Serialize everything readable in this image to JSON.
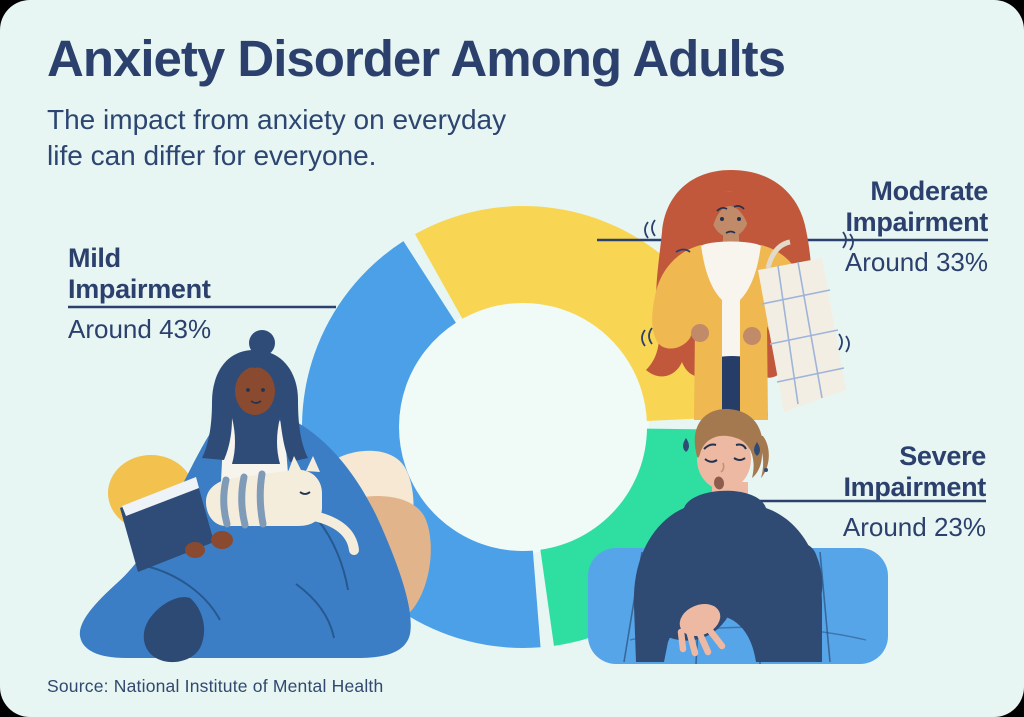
{
  "page": {
    "title": "Anxiety Disorder Among Adults",
    "subtitle_line1": "The impact from anxiety on everyday",
    "subtitle_line2": "life can differ for everyone.",
    "source": "Source: National Institute of Mental Health",
    "card_color": "#E7F6F2",
    "text_navy": "#2C406E"
  },
  "chart_data": {
    "type": "pie",
    "variant": "donut",
    "title": "Anxiety Disorder Among Adults",
    "subtitle": "The impact from anxiety on everyday life can differ for everyone.",
    "source": "Source: National Institute of Mental Health",
    "start_angle_deg": 121,
    "clockwise": true,
    "gap_between_segments": true,
    "hole_color": "#F0FBF8",
    "legend_position": "callouts-with-leader-lines",
    "segments": [
      {
        "name": "moderate",
        "label_line1": "Moderate",
        "label_line2": "Impairment",
        "value_text": "Around 33%",
        "value": 33,
        "color": "#F8D654",
        "illustration": "anxious-woman-with-tote-bag"
      },
      {
        "name": "severe",
        "label_line1": "Severe",
        "label_line2": "Impairment",
        "value_text": "Around 23%",
        "value": 23,
        "color": "#2FDFA2",
        "illustration": "tired-man-with-blanket"
      },
      {
        "name": "mild",
        "label_line1": "Mild",
        "label_line2": "Impairment",
        "value_text": "Around 43%",
        "value": 43,
        "color": "#4BA0E8",
        "illustration": "person-reading-book-with-cat"
      }
    ]
  }
}
